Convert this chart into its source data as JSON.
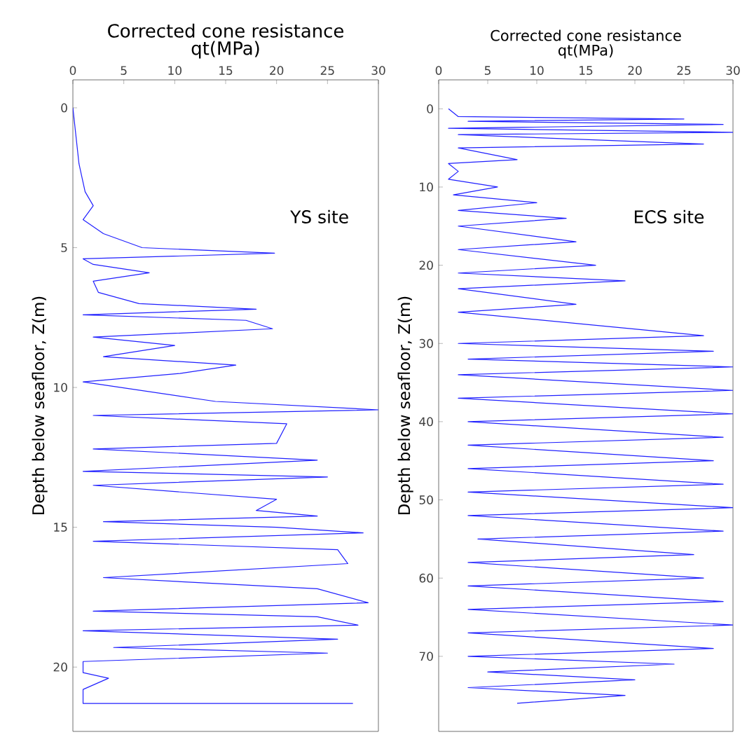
{
  "chart_data": [
    {
      "type": "line",
      "title": "Corrected cone resistance",
      "xlabel": "qt(MPa)",
      "ylabel": "Depth below seafloor, Z(m)",
      "annotations": [
        "YS site"
      ],
      "xlim": [
        0,
        30
      ],
      "xticks": [
        0,
        5,
        10,
        15,
        20,
        25,
        30
      ],
      "ylim": [
        22.3,
        -1.0
      ],
      "yticks": [
        0,
        5,
        10,
        15,
        20
      ],
      "series": [
        {
          "color": "#2020ff",
          "x": [
            0,
            0.3,
            0.6,
            1.2,
            2,
            1,
            3,
            6.8,
            19.8,
            1,
            2,
            7.5,
            2,
            2.5,
            6.5,
            18,
            1,
            17,
            19.6,
            2,
            10,
            3,
            16,
            10.5,
            1,
            14,
            30,
            2,
            21,
            20,
            2,
            24,
            1,
            25,
            2,
            20,
            18,
            24,
            3,
            20,
            28.5,
            2,
            26,
            27,
            3,
            24,
            29,
            2,
            24,
            28,
            1,
            26,
            4,
            25,
            1,
            1,
            3.5,
            1,
            1,
            27.5
          ],
          "values": [
            0,
            1,
            2,
            3,
            3.5,
            4,
            4.5,
            5,
            5.2,
            5.4,
            5.6,
            5.9,
            6.2,
            6.6,
            7,
            7.2,
            7.4,
            7.6,
            7.9,
            8.2,
            8.5,
            8.9,
            9.2,
            9.5,
            9.8,
            10.5,
            10.8,
            11,
            11.3,
            12,
            12.2,
            12.6,
            13,
            13.2,
            13.5,
            14,
            14.4,
            14.6,
            14.8,
            15,
            15.2,
            15.5,
            15.8,
            16.3,
            16.8,
            17.2,
            17.7,
            18,
            18.2,
            18.5,
            18.7,
            19,
            19.3,
            19.5,
            19.8,
            20.2,
            20.4,
            20.8,
            21.3,
            21.3
          ]
        }
      ]
    },
    {
      "type": "line",
      "title": "Corrected cone resistance",
      "xlabel": "qt(MPa)",
      "ylabel": "Depth below seafloor, Z(m)",
      "annotations": [
        "ECS site"
      ],
      "xlim": [
        0,
        30
      ],
      "xticks": [
        0,
        5,
        10,
        15,
        20,
        25,
        30
      ],
      "ylim": [
        79.6,
        -3.7
      ],
      "yticks": [
        0,
        10,
        20,
        30,
        40,
        50,
        60,
        70
      ],
      "series": [
        {
          "color": "#2020ff",
          "x": [
            1,
            2,
            25,
            3,
            29,
            1,
            30,
            2,
            27,
            2,
            8,
            1,
            2,
            1,
            6,
            1.5,
            10,
            2,
            13,
            2,
            14,
            2,
            16,
            2,
            19,
            2,
            14,
            2,
            27,
            2,
            28,
            3,
            30,
            2,
            30,
            2,
            30,
            3,
            29,
            3,
            28,
            3,
            29,
            3,
            30,
            3,
            29,
            4,
            26,
            3,
            27,
            3,
            29,
            3,
            30,
            3,
            28,
            3,
            24,
            5,
            20,
            3,
            19,
            8
          ],
          "values": [
            0,
            1,
            1.3,
            1.6,
            2,
            2.5,
            3,
            3.3,
            4.5,
            5,
            6.5,
            7,
            8,
            9,
            10,
            11,
            12,
            13,
            14,
            15,
            17,
            18,
            20,
            21,
            22,
            23,
            25,
            26,
            29,
            30,
            31,
            32,
            33,
            34,
            36,
            37,
            39,
            40,
            42,
            43,
            45,
            46,
            48,
            49,
            51,
            52,
            54,
            55,
            57,
            58,
            60,
            61,
            63,
            64,
            66,
            67,
            69,
            70,
            71,
            72,
            73,
            74,
            75,
            76
          ]
        }
      ]
    }
  ]
}
